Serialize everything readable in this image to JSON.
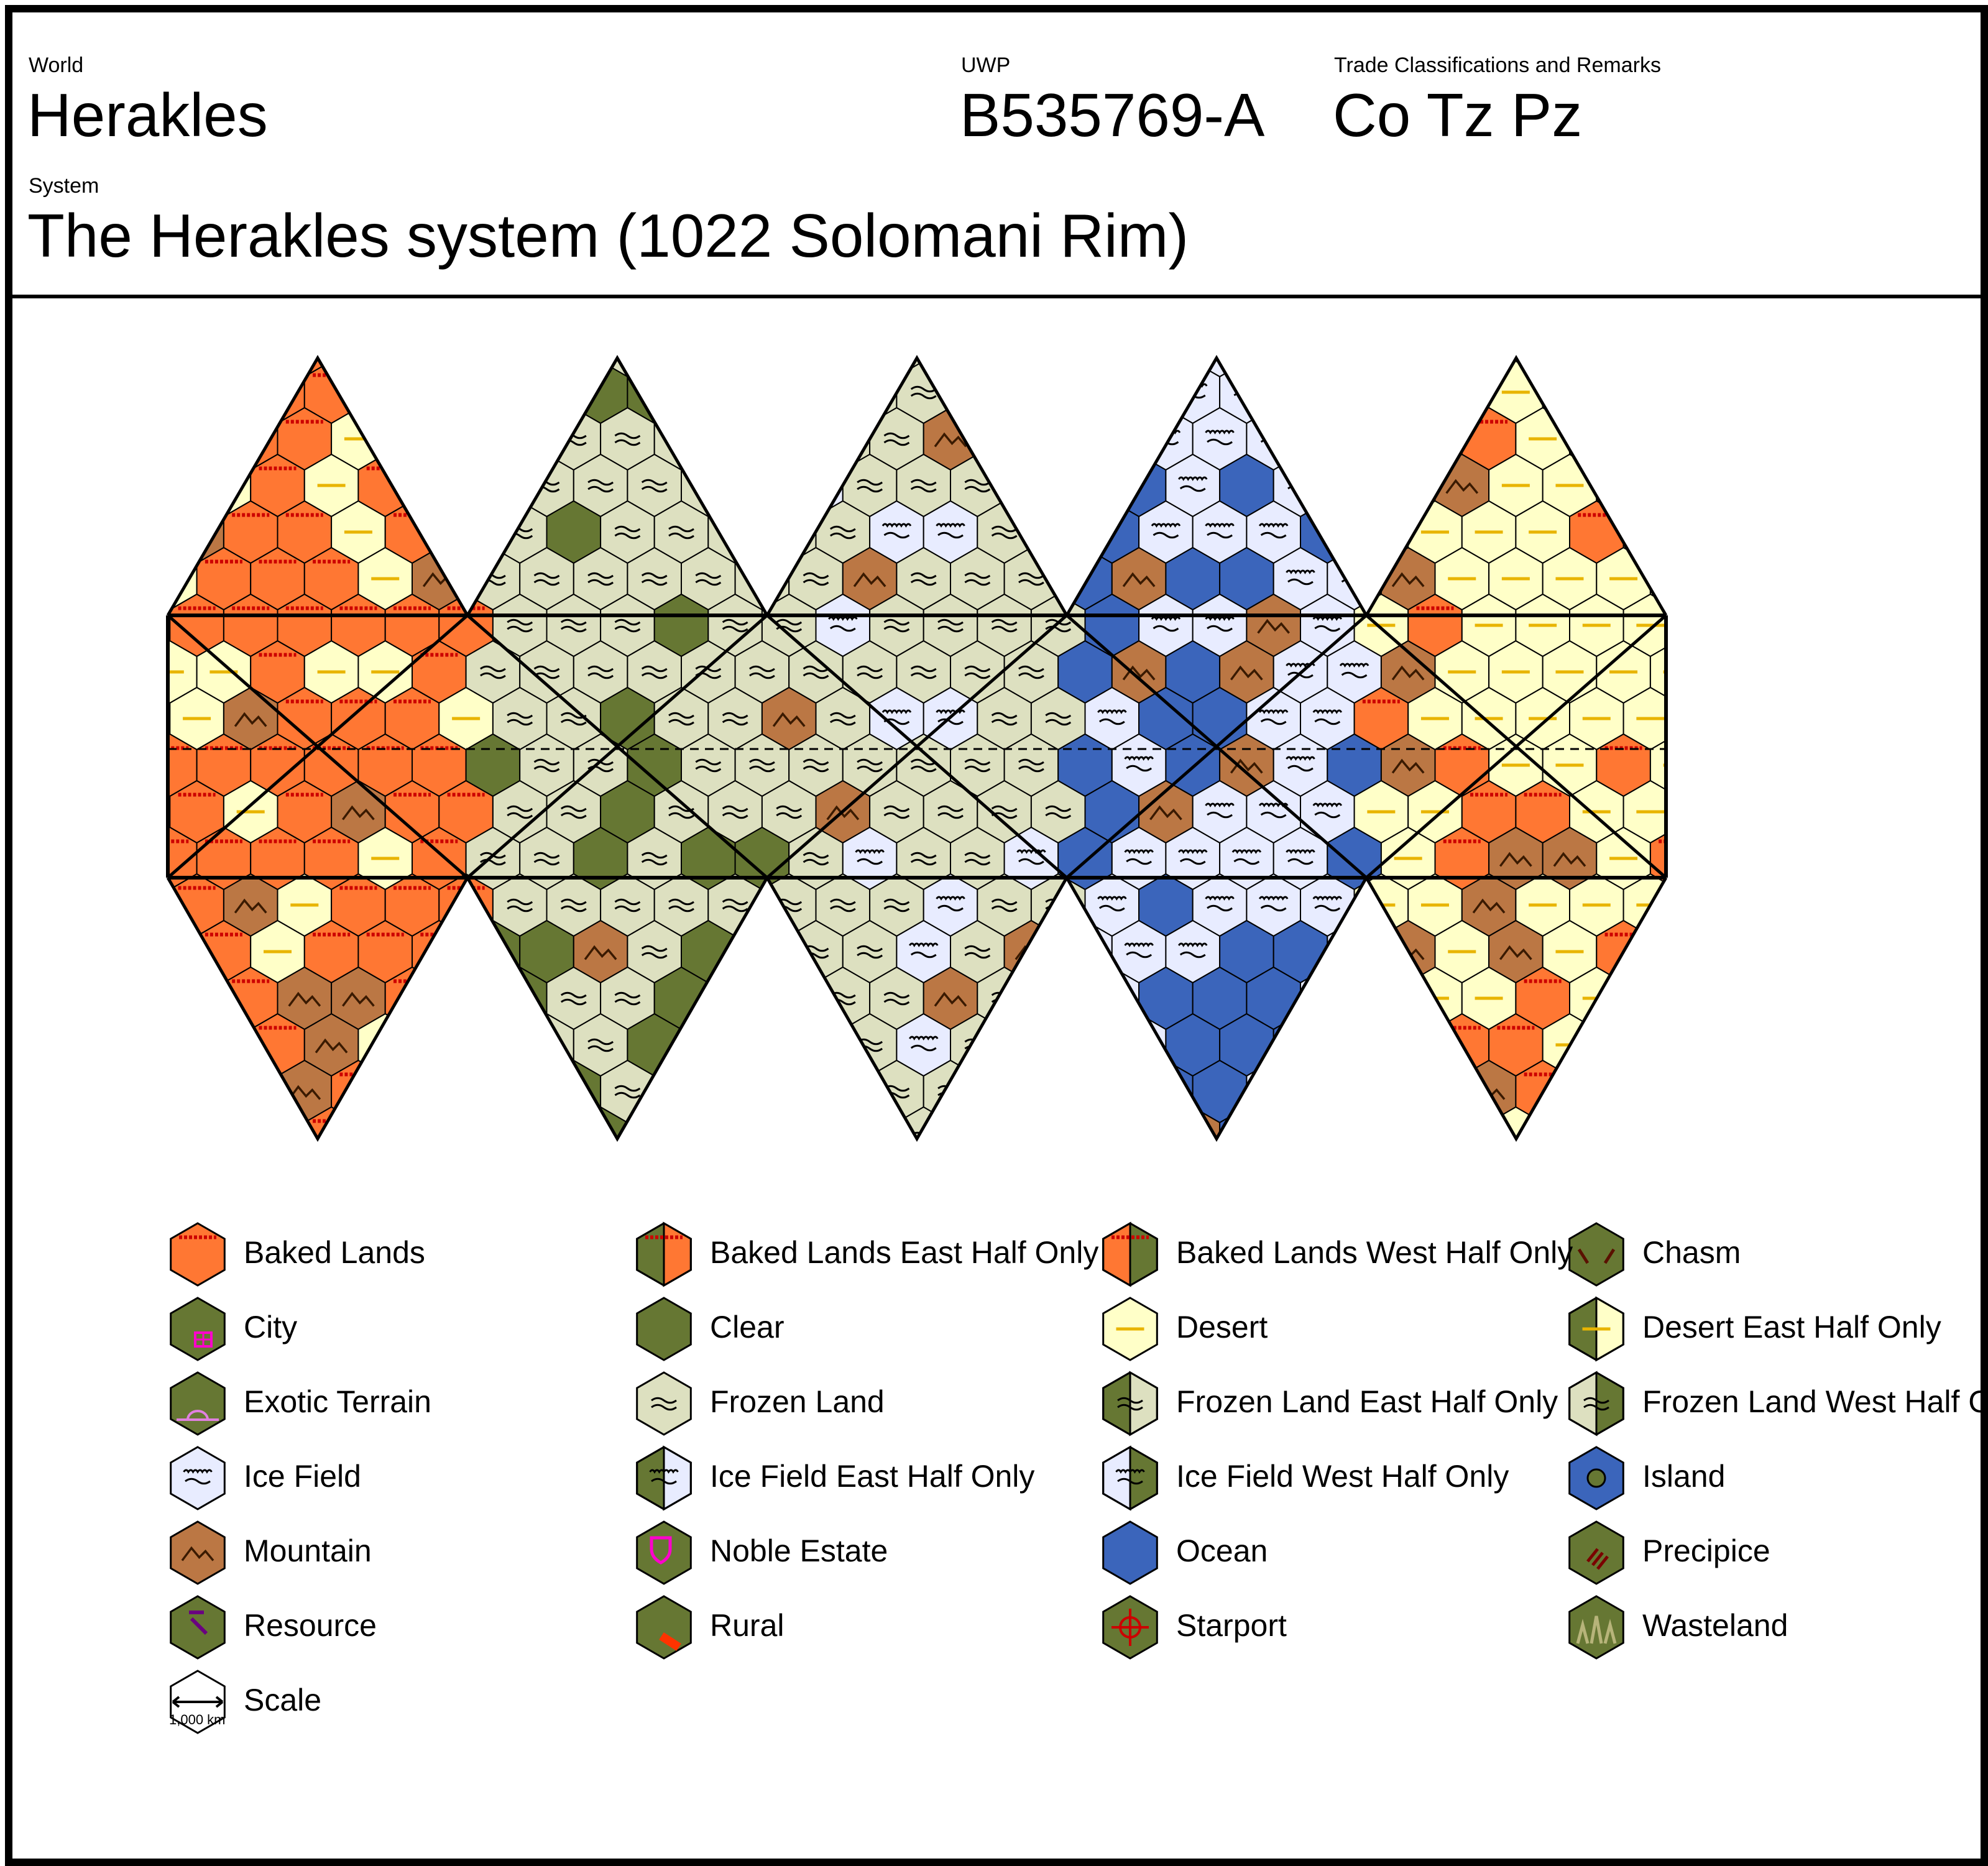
{
  "header": {
    "world_label": "World",
    "world_name": "Herakles",
    "uwp_label": "UWP",
    "uwp_value": "B535769-A",
    "trade_label": "Trade Classifications and Remarks",
    "trade_value": "Co Tz Pz",
    "system_label": "System",
    "system_value": "The Herakles system (1022 Solomani Rim)"
  },
  "colors": {
    "baked": "#ff7733",
    "clear": "#667733",
    "desert": "#ffffc8",
    "frozen": "#dde0c0",
    "ice": "#e8ecff",
    "mountain": "#bb7744",
    "ocean": "#3b65bb",
    "pink": "#ff00cc",
    "red": "#cc0000",
    "purple": "#6a0080",
    "yellow": "#e8b400"
  },
  "legend": [
    {
      "key": "baked-lands",
      "label": "Baked Lands"
    },
    {
      "key": "baked-lands-east",
      "label": "Baked Lands East Half Only"
    },
    {
      "key": "baked-lands-west",
      "label": "Baked Lands West Half Only"
    },
    {
      "key": "chasm",
      "label": "Chasm"
    },
    {
      "key": "city",
      "label": "City"
    },
    {
      "key": "clear",
      "label": "Clear"
    },
    {
      "key": "desert",
      "label": "Desert"
    },
    {
      "key": "desert-east",
      "label": "Desert East Half Only"
    },
    {
      "key": "exotic-terrain",
      "label": "Exotic Terrain"
    },
    {
      "key": "frozen-land",
      "label": "Frozen Land"
    },
    {
      "key": "frozen-land-east",
      "label": "Frozen Land East Half Only"
    },
    {
      "key": "frozen-land-west",
      "label": "Frozen Land West Half Only"
    },
    {
      "key": "ice-field",
      "label": "Ice Field"
    },
    {
      "key": "ice-field-east",
      "label": "Ice Field East Half Only"
    },
    {
      "key": "ice-field-west",
      "label": "Ice Field West Half Only"
    },
    {
      "key": "island",
      "label": "Island"
    },
    {
      "key": "mountain",
      "label": "Mountain"
    },
    {
      "key": "noble-estate",
      "label": "Noble Estate"
    },
    {
      "key": "ocean",
      "label": "Ocean"
    },
    {
      "key": "precipice",
      "label": "Precipice"
    },
    {
      "key": "resource",
      "label": "Resource"
    },
    {
      "key": "rural",
      "label": "Rural"
    },
    {
      "key": "starport",
      "label": "Starport"
    },
    {
      "key": "wasteland",
      "label": "Wasteland"
    },
    {
      "key": "scale",
      "label": "Scale",
      "scale_text": "1,000 km"
    }
  ],
  "map": {
    "faces": [
      {
        "terrain": "baked-lands",
        "accent": "desert"
      },
      {
        "terrain": "frozen-land",
        "accent": "clear"
      },
      {
        "terrain": "frozen-land",
        "accent": "ice-field"
      },
      {
        "terrain": "ice-field",
        "accent": "ocean"
      },
      {
        "terrain": "desert",
        "accent": "baked-lands"
      }
    ]
  }
}
